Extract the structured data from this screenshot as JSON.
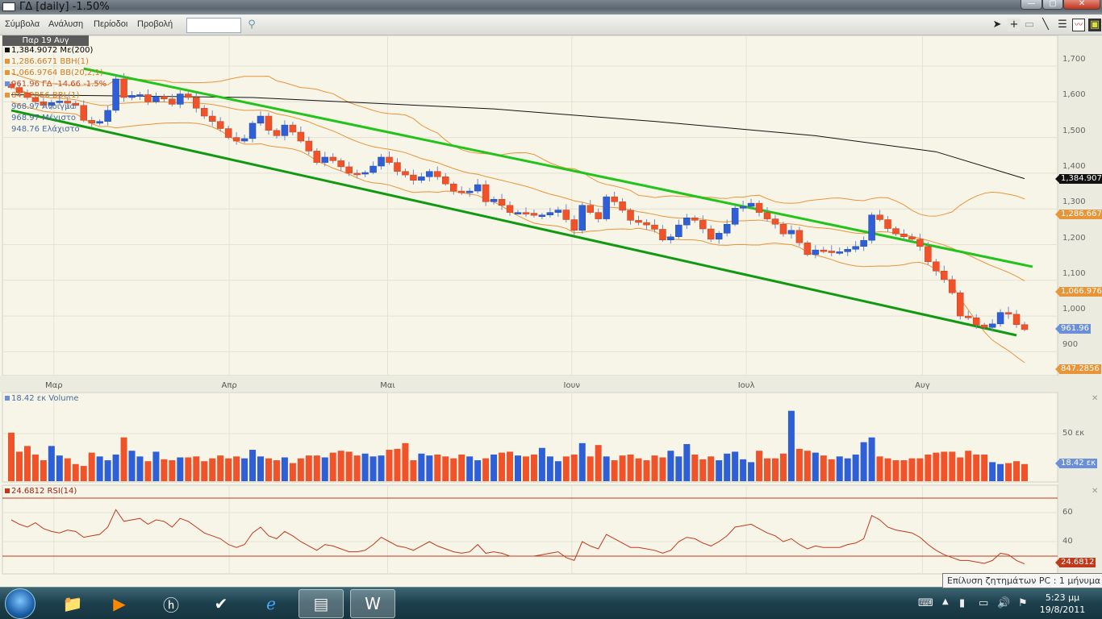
{
  "window": {
    "title": "ΓΔ [daily] -1.50%",
    "minimize": "—",
    "maximize": "▢",
    "close": "✕"
  },
  "menu": {
    "items": [
      "Σύμβολα",
      "Ανάλυση",
      "Περίοδοι",
      "Προβολή"
    ],
    "search_value": "",
    "search_icon": "magnifier-icon"
  },
  "tools": [
    "pointer-icon",
    "crosshair-icon",
    "rectangle-icon",
    "line-icon",
    "dotted-lines-icon",
    "chart-icon",
    "save-icon"
  ],
  "legend": {
    "date": "Παρ 19 Αυγ",
    "ma200": "1,384.9072 Με(200)",
    "bbh": "1,286.6671 BBH(1)",
    "bb": "1,066.9764 BB(20,2,1)",
    "price": "961.96 ΓΔ -14.66 -1.5%",
    "bbl": "847.2856 BBL(1)",
    "open": "968.97 Άνοιγμα",
    "high": "968.97 Μέγιστο",
    "low": "948.76 Ελάχιστο",
    "volume": "18.42 εκ Volume",
    "rsi": "24.6812 RSI(14)"
  },
  "colors": {
    "up": "#2f5fd6",
    "down": "#f0532a",
    "bands": "#e8953a",
    "ma": "#111111",
    "trend_upper": "#22c41a",
    "trend_lower": "#119a11",
    "rsi": "#c0391b",
    "background": "#f7f5e8"
  },
  "chart_data": [
    {
      "type": "candlestick",
      "title": "ΓΔ [daily]",
      "x_ticks": [
        {
          "label": "Μαρ",
          "index": 5.3
        },
        {
          "label": "Απρ",
          "index": 27.1
        },
        {
          "label": "Μαι",
          "index": 46.8
        },
        {
          "label": "Ιουν",
          "index": 69.7
        },
        {
          "label": "Ιουλ",
          "index": 91.4
        },
        {
          "label": "Αυγ",
          "index": 113.3
        }
      ],
      "y_ticks": [
        "1,700",
        "1,600",
        "1,500",
        "1,400",
        "1,300",
        "1,200",
        "1,100",
        "1,000",
        "900"
      ],
      "y_values": [
        1700,
        1600,
        1500,
        1400,
        1300,
        1200,
        1100,
        1000,
        900
      ],
      "closes": [
        1640,
        1625,
        1612,
        1600,
        1590,
        1598,
        1602,
        1596,
        1590,
        1548,
        1540,
        1545,
        1576,
        1664,
        1612,
        1618,
        1620,
        1600,
        1615,
        1608,
        1593,
        1622,
        1612,
        1582,
        1560,
        1545,
        1525,
        1500,
        1490,
        1497,
        1540,
        1560,
        1520,
        1505,
        1535,
        1515,
        1490,
        1462,
        1430,
        1445,
        1435,
        1418,
        1400,
        1398,
        1402,
        1420,
        1445,
        1430,
        1405,
        1395,
        1380,
        1390,
        1405,
        1390,
        1370,
        1350,
        1345,
        1350,
        1368,
        1320,
        1327,
        1310,
        1290,
        1290,
        1288,
        1282,
        1283,
        1290,
        1297,
        1270,
        1240,
        1310,
        1290,
        1272,
        1334,
        1320,
        1296,
        1268,
        1262,
        1255,
        1243,
        1213,
        1222,
        1255,
        1275,
        1268,
        1244,
        1215,
        1232,
        1257,
        1302,
        1307,
        1316,
        1290,
        1272,
        1257,
        1230,
        1240,
        1205,
        1172,
        1185,
        1182,
        1178,
        1180,
        1187,
        1195,
        1212,
        1283,
        1270,
        1245,
        1230,
        1222,
        1215,
        1195,
        1152,
        1126,
        1102,
        1065,
        1000,
        995,
        975,
        968,
        978,
        1010,
        1005,
        976,
        962
      ],
      "ma200": [
        [
          0,
          1620
        ],
        [
          30,
          1612
        ],
        [
          60,
          1580
        ],
        [
          80,
          1545
        ],
        [
          100,
          1505
        ],
        [
          115,
          1460
        ],
        [
          126,
          1384.9
        ]
      ],
      "trendlines": [
        {
          "from": [
            9,
            1693
          ],
          "to": [
            127,
            1138
          ]
        },
        {
          "from": [
            0,
            1576
          ],
          "to": [
            125,
            946
          ]
        }
      ],
      "last_values": {
        "ma200": "1,384.907",
        "bbh": "1,286.667",
        "bb": "1,066.976",
        "price": "961.96",
        "bbl": "847.2856"
      }
    },
    {
      "type": "bar",
      "name": "Volume",
      "y_ticks": [
        "50 εκ"
      ],
      "last": "18.42 εκ",
      "values": [
        51,
        31,
        37,
        28,
        22,
        37,
        27,
        24,
        18,
        16,
        30,
        26,
        22,
        28,
        46,
        32,
        26,
        21,
        31,
        23,
        22,
        25,
        25,
        26,
        21,
        24,
        27,
        24,
        26,
        24,
        33,
        26,
        24,
        22,
        25,
        19,
        24,
        27,
        27,
        25,
        30,
        32,
        31,
        27,
        29,
        26,
        27,
        33,
        34,
        40,
        22,
        29,
        27,
        28,
        26,
        24,
        28,
        26,
        22,
        24,
        28,
        30,
        31,
        27,
        26,
        28,
        35,
        26,
        21,
        26,
        28,
        40,
        26,
        38,
        26,
        22,
        27,
        28,
        24,
        22,
        27,
        25,
        32,
        26,
        39,
        28,
        23,
        26,
        22,
        29,
        31,
        23,
        20,
        32,
        24,
        24,
        29,
        74,
        34,
        32,
        30,
        27,
        23,
        26,
        24,
        28,
        41,
        46,
        26,
        24,
        22,
        22,
        24,
        24,
        28,
        30,
        31,
        31,
        25,
        32,
        28,
        28,
        20,
        18,
        19,
        21,
        18
      ]
    },
    {
      "type": "line",
      "name": "RSI(14)",
      "y_ticks": [
        "60",
        "40"
      ],
      "levels": [
        70,
        30
      ],
      "last": "24.6812",
      "values": [
        55,
        52,
        50,
        53,
        49,
        47,
        46,
        48,
        47,
        43,
        44,
        45,
        50,
        62,
        54,
        55,
        56,
        52,
        55,
        54,
        50,
        56,
        54,
        50,
        46,
        44,
        42,
        38,
        36,
        38,
        46,
        50,
        44,
        42,
        47,
        44,
        40,
        37,
        34,
        38,
        37,
        35,
        33,
        33,
        34,
        38,
        43,
        40,
        37,
        36,
        34,
        37,
        40,
        37,
        35,
        33,
        32,
        33,
        38,
        32,
        33,
        32,
        30,
        30,
        30,
        30,
        31,
        32,
        33,
        29,
        27,
        40,
        37,
        35,
        45,
        42,
        39,
        36,
        36,
        35,
        34,
        32,
        34,
        40,
        43,
        42,
        39,
        37,
        40,
        44,
        50,
        51,
        52,
        49,
        46,
        44,
        40,
        42,
        38,
        35,
        37,
        36,
        36,
        36,
        38,
        39,
        42,
        58,
        55,
        50,
        48,
        47,
        46,
        43,
        38,
        34,
        31,
        29,
        27,
        27,
        26,
        25,
        27,
        32,
        31,
        27,
        24.68
      ]
    }
  ],
  "tooltip": "Επίλυση ζητημάτων PC : 1 μήνυμα",
  "taskbar": {
    "apps": [
      "explorer-icon",
      "media-player-icon",
      "hp-icon",
      "stock-app-icon",
      "internet-explorer-icon",
      "chart-window-icon",
      "word-icon"
    ],
    "time": "5:23 μμ",
    "date": "19/8/2011"
  }
}
